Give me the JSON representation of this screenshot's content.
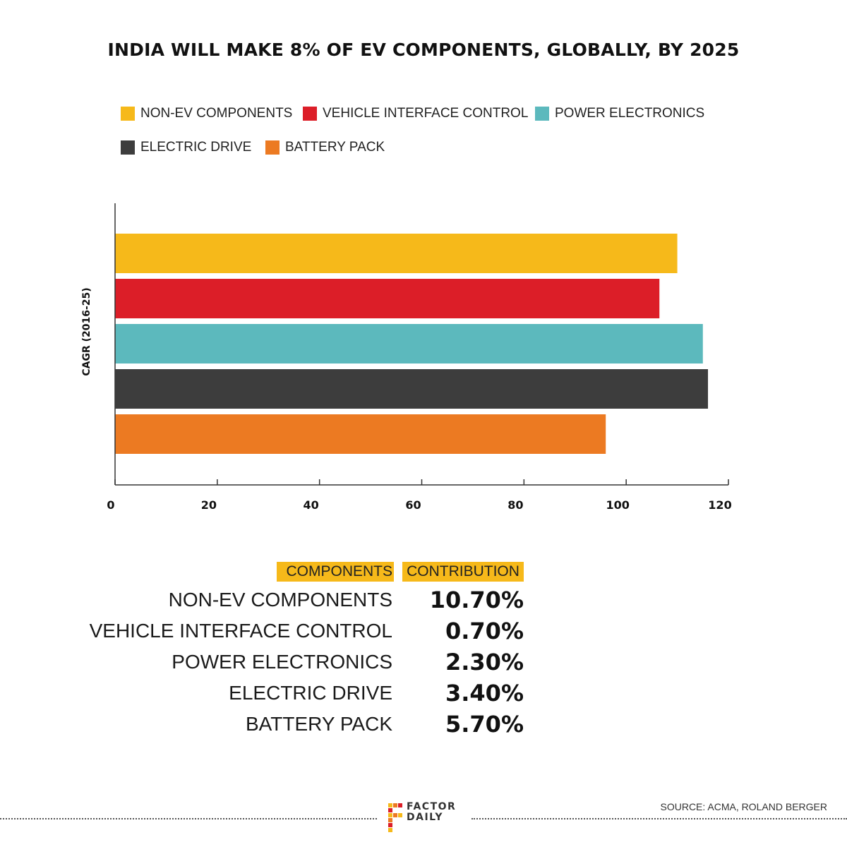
{
  "colors": {
    "non_ev": "#f6b91a",
    "vic": "#dc1e28",
    "power": "#5cb9bd",
    "drive": "#3d3d3d",
    "battery": "#ec7a22",
    "axis": "#333333"
  },
  "chart_data": {
    "type": "bar",
    "orientation": "horizontal",
    "title": "INDIA WILL MAKE 8% OF EV COMPONENTS, GLOBALLY, BY 2025",
    "ylabel": "CAGR (2016-25)",
    "xlabel": "",
    "xlim": [
      0,
      120
    ],
    "xticks": [
      0,
      20,
      40,
      60,
      80,
      100,
      120
    ],
    "grid": false,
    "legend_position": "top",
    "series": [
      {
        "name": "NON-EV COMPONENTS",
        "value": 110,
        "color": "#f6b91a"
      },
      {
        "name": "VEHICLE INTERFACE CONTROL",
        "value": 106.5,
        "color": "#dc1e28"
      },
      {
        "name": "POWER ELECTRONICS",
        "value": 115,
        "color": "#5cb9bd"
      },
      {
        "name": "ELECTRIC DRIVE",
        "value": 116,
        "color": "#3d3d3d"
      },
      {
        "name": "BATTERY PACK",
        "value": 96,
        "color": "#ec7a22"
      }
    ]
  },
  "legend": [
    {
      "label": "NON-EV COMPONENTS",
      "color": "#f6b91a"
    },
    {
      "label": "VEHICLE INTERFACE CONTROL",
      "color": "#dc1e28"
    },
    {
      "label": "POWER ELECTRONICS",
      "color": "#5cb9bd"
    },
    {
      "label": "ELECTRIC DRIVE",
      "color": "#3d3d3d"
    },
    {
      "label": "BATTERY PACK",
      "color": "#ec7a22"
    }
  ],
  "table": {
    "header_components": "COMPONENTS",
    "header_contribution": "CONTRIBUTION",
    "rows": [
      {
        "name": "NON-EV COMPONENTS",
        "value": "10.70%"
      },
      {
        "name": "VEHICLE INTERFACE CONTROL",
        "value": "0.70%"
      },
      {
        "name": "POWER ELECTRONICS",
        "value": "2.30%"
      },
      {
        "name": "ELECTRIC DRIVE",
        "value": "3.40%"
      },
      {
        "name": "BATTERY PACK",
        "value": "5.70%"
      }
    ]
  },
  "footer": {
    "logo_line1": "FACTOR",
    "logo_line2": "DAILY",
    "source": "SOURCE: ACMA, ROLAND BERGER"
  }
}
